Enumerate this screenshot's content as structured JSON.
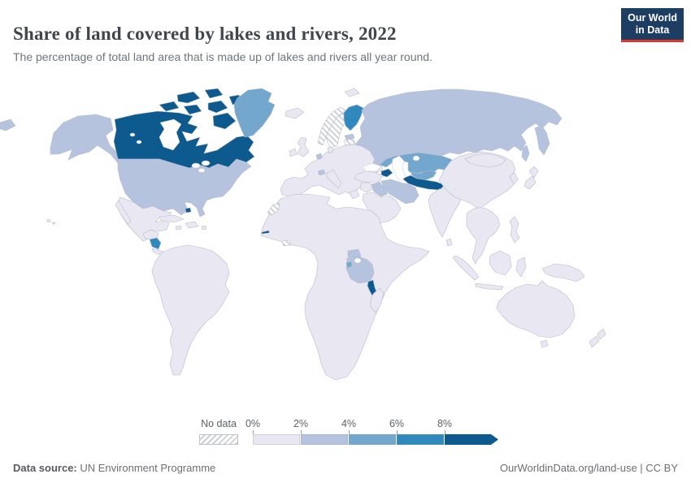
{
  "header": {
    "title": "Share of land covered by lakes and rivers, 2022",
    "subtitle": "The percentage of total land area that is made up of lakes and rivers all year round.",
    "logo": {
      "line1": "Our World",
      "line2": "in Data"
    }
  },
  "colors": {
    "logo_bg": "#1d3d63",
    "logo_accent": "#dc3a2d",
    "ocean": "#ffffff",
    "land_border": "#b7bdcc"
  },
  "legend": {
    "no_data_label": "No data",
    "ticks": [
      "0%",
      "2%",
      "4%",
      "6%",
      "8%"
    ],
    "bins": [
      {
        "label": "0-2%",
        "color": "#e9e7f1"
      },
      {
        "label": "2-4%",
        "color": "#b5c3de"
      },
      {
        "label": "4-6%",
        "color": "#73a7ce"
      },
      {
        "label": "6-8%",
        "color": "#2f89bd"
      },
      {
        "label": ">8%",
        "color": "#0d5a8e"
      }
    ]
  },
  "footer": {
    "source_label": "Data source:",
    "source_value": " UN Environment Programme",
    "attribution": "OurWorldinData.org/land-use | CC BY"
  },
  "chart_data": {
    "type": "choropleth",
    "title": "Share of land covered by lakes and rivers",
    "year": 2022,
    "unit": "% of total land area",
    "legend_bins": [
      "0-2%",
      "2-4%",
      "4-6%",
      "6-8%",
      ">8%",
      "No data"
    ],
    "values": {
      "Canada": ">8%",
      "United States": "2-4%",
      "Greenland": "4-6%",
      "Mexico": "0-2%",
      "Guatemala": "0-2%",
      "Nicaragua": "6-8%",
      "Panama": "0-2%",
      "Cuba": "0-2%",
      "Bahamas": ">8%",
      "Colombia": "0-2%",
      "Venezuela": "0-2%",
      "Brazil": "0-2%",
      "Peru": "0-2%",
      "Argentina": "0-2%",
      "Chile": "0-2%",
      "United Kingdom": "0-2%",
      "Ireland": "0-2%",
      "Iceland": "0-2%",
      "France": "0-2%",
      "Spain": "0-2%",
      "Germany": "0-2%",
      "Italy": "0-2%",
      "Netherlands": "2-4%",
      "Switzerland": "2-4%",
      "Denmark": "0-2%",
      "Norway": "No data",
      "Sweden": "No data",
      "Finland": "6-8%",
      "Estonia": "2-4%",
      "Latvia": "No data",
      "Russia": "2-4%",
      "Kazakhstan": "4-6%",
      "Uzbekistan": "4-6%",
      "Turkmenistan": ">8%",
      "Azerbaijan": ">8%",
      "Turkey": "0-2%",
      "Iran": "2-4%",
      "Iraq": "2-4%",
      "Saudi Arabia": "0-2%",
      "Egypt": "0-2%",
      "Western Sahara": "No data",
      "Cote d'Ivoire": "No data",
      "Gambia": ">8%",
      "Uganda": "2-4%",
      "Tanzania": "2-4%",
      "Burundi": "4-6%",
      "Malawi": ">8%",
      "Madagascar": "0-2%",
      "India": "0-2%",
      "China": "0-2%",
      "Mongolia": "0-2%",
      "Japan": "0-2%",
      "South Korea": "0-2%",
      "Indonesia": "0-2%",
      "Philippines": "0-2%",
      "Australia": "0-2%",
      "New Zealand": "0-2%"
    }
  },
  "map": {
    "default_fill": "#e9e7f1",
    "regions": {
      "alaska": "2-4%",
      "canada": ">8%",
      "canada-islands": ">8%",
      "greenland": "4-6%",
      "iceland": "0-2%",
      "usa": "2-4%",
      "hawaii": "0-2%",
      "mexico": "0-2%",
      "baja": "0-2%",
      "guatemala-honduras": "0-2%",
      "nicaragua": "6-8%",
      "costa-rica-panama": "0-2%",
      "cuba": "0-2%",
      "hispaniola": "0-2%",
      "jamaica": "0-2%",
      "puerto-rico": "0-2%",
      "bahamas": ">8%",
      "south-america": "0-2%",
      "uk": "0-2%",
      "ireland": "0-2%",
      "europe": "0-2%",
      "italy": "0-2%",
      "greece": "0-2%",
      "denmark": "0-2%",
      "netherlands": "2-4%",
      "switzerland": "2-4%",
      "estonia": "2-4%",
      "latvia": "No data",
      "norway": "No data",
      "sweden": "No data",
      "finland": "6-8%",
      "svalbard": "0-2%",
      "russia": "2-4%",
      "kazakhstan": "4-6%",
      "uzbekistan": "4-6%",
      "turkmenistan": ">8%",
      "azerbaijan": ">8%",
      "caucasus": "0-2%",
      "turkey": "0-2%",
      "iran": "2-4%",
      "iraq": "2-4%",
      "levant": "0-2%",
      "arabia": "0-2%",
      "africa": "0-2%",
      "western-sahara": "No data",
      "cote-divoire": "No data",
      "gambia": ">8%",
      "uganda": "2-4%",
      "tanzania": "2-4%",
      "burundi": "4-6%",
      "malawi": ">8%",
      "madagascar": "0-2%",
      "india": "0-2%",
      "sri-lanka": "0-2%",
      "china": "0-2%",
      "mongolia": "0-2%",
      "korea": "0-2%",
      "japan": "0-2%",
      "se-asia": "0-2%",
      "sumatra": "0-2%",
      "java": "0-2%",
      "borneo": "0-2%",
      "sulawesi": "0-2%",
      "philippines": "0-2%",
      "new-guinea": "0-2%",
      "australia": "0-2%",
      "tasmania": "0-2%",
      "new-zealand": "0-2%"
    }
  }
}
